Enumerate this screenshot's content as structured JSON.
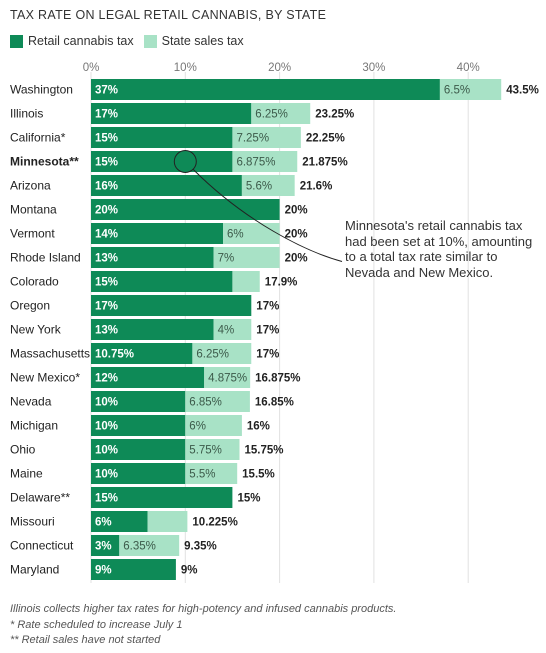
{
  "chart_data": {
    "type": "bar",
    "title": "TAX RATE ON LEGAL RETAIL CANNABIS, BY STATE",
    "stacked": true,
    "orientation": "horizontal",
    "xlim": [
      0,
      45
    ],
    "xticks": [
      "0%",
      "10%",
      "20%",
      "30%",
      "40%"
    ],
    "xtick_values": [
      0,
      10,
      20,
      30,
      40
    ],
    "grid": true,
    "legend_position": "top-left",
    "series": [
      {
        "name": "Retail cannabis tax",
        "color": "#0e8a57"
      },
      {
        "name": "State sales tax",
        "color": "#a8e2c6"
      }
    ],
    "rows": [
      {
        "state": "Washington",
        "bold": false,
        "retail": 37,
        "retail_label": "37%",
        "sales": 6.5,
        "sales_label": "6.5%",
        "total_label": "43.5%"
      },
      {
        "state": "Illinois",
        "bold": false,
        "retail": 17,
        "retail_label": "17%",
        "sales": 6.25,
        "sales_label": "6.25%",
        "total_label": "23.25%"
      },
      {
        "state": "California*",
        "bold": false,
        "retail": 15,
        "retail_label": "15%",
        "sales": 7.25,
        "sales_label": "7.25%",
        "total_label": "22.25%"
      },
      {
        "state": "Minnesota**",
        "bold": true,
        "retail": 15,
        "retail_label": "15%",
        "sales": 6.875,
        "sales_label": "6.875%",
        "total_label": "21.875%"
      },
      {
        "state": "Arizona",
        "bold": false,
        "retail": 16,
        "retail_label": "16%",
        "sales": 5.6,
        "sales_label": "5.6%",
        "total_label": "21.6%"
      },
      {
        "state": "Montana",
        "bold": false,
        "retail": 20,
        "retail_label": "20%",
        "sales": 0,
        "sales_label": "",
        "total_label": "20%"
      },
      {
        "state": "Vermont",
        "bold": false,
        "retail": 14,
        "retail_label": "14%",
        "sales": 6,
        "sales_label": "6%",
        "total_label": "20%"
      },
      {
        "state": "Rhode Island",
        "bold": false,
        "retail": 13,
        "retail_label": "13%",
        "sales": 7,
        "sales_label": "7%",
        "total_label": "20%"
      },
      {
        "state": "Colorado",
        "bold": false,
        "retail": 15,
        "retail_label": "15%",
        "sales": 2.9,
        "sales_label": "",
        "total_label": "17.9%"
      },
      {
        "state": "Oregon",
        "bold": false,
        "retail": 17,
        "retail_label": "17%",
        "sales": 0,
        "sales_label": "",
        "total_label": "17%"
      },
      {
        "state": "New York",
        "bold": false,
        "retail": 13,
        "retail_label": "13%",
        "sales": 4,
        "sales_label": "4%",
        "total_label": "17%"
      },
      {
        "state": "Massachusetts",
        "bold": false,
        "retail": 10.75,
        "retail_label": "10.75%",
        "sales": 6.25,
        "sales_label": "6.25%",
        "total_label": "17%"
      },
      {
        "state": "New Mexico*",
        "bold": false,
        "retail": 12,
        "retail_label": "12%",
        "sales": 4.875,
        "sales_label": "4.875%",
        "total_label": "16.875%"
      },
      {
        "state": "Nevada",
        "bold": false,
        "retail": 10,
        "retail_label": "10%",
        "sales": 6.85,
        "sales_label": "6.85%",
        "total_label": "16.85%"
      },
      {
        "state": "Michigan",
        "bold": false,
        "retail": 10,
        "retail_label": "10%",
        "sales": 6,
        "sales_label": "6%",
        "total_label": "16%"
      },
      {
        "state": "Ohio",
        "bold": false,
        "retail": 10,
        "retail_label": "10%",
        "sales": 5.75,
        "sales_label": "5.75%",
        "total_label": "15.75%"
      },
      {
        "state": "Maine",
        "bold": false,
        "retail": 10,
        "retail_label": "10%",
        "sales": 5.5,
        "sales_label": "5.5%",
        "total_label": "15.5%"
      },
      {
        "state": "Delaware**",
        "bold": false,
        "retail": 15,
        "retail_label": "15%",
        "sales": 0,
        "sales_label": "",
        "total_label": "15%"
      },
      {
        "state": "Missouri",
        "bold": false,
        "retail": 6,
        "retail_label": "6%",
        "sales": 4.225,
        "sales_label": "",
        "total_label": "10.225%"
      },
      {
        "state": "Connecticut",
        "bold": false,
        "retail": 3,
        "retail_label": "3%",
        "sales": 6.35,
        "sales_label": "6.35%",
        "total_label": "9.35%"
      },
      {
        "state": "Maryland",
        "bold": false,
        "retail": 9,
        "retail_label": "9%",
        "sales": 0,
        "sales_label": "",
        "total_label": "9%"
      }
    ],
    "annotation": "Minnesota's retail cannabis tax had been set at 10%, amounting to a total tax rate similar to Nevada and New Mexico.",
    "annotation_target": {
      "state": "Minnesota**",
      "value": 10
    }
  },
  "footnotes": [
    "Illinois collects higher tax rates for high-potency and infused cannabis products.",
    "* Rate scheduled to increase July 1",
    "** Retail sales have not started"
  ]
}
